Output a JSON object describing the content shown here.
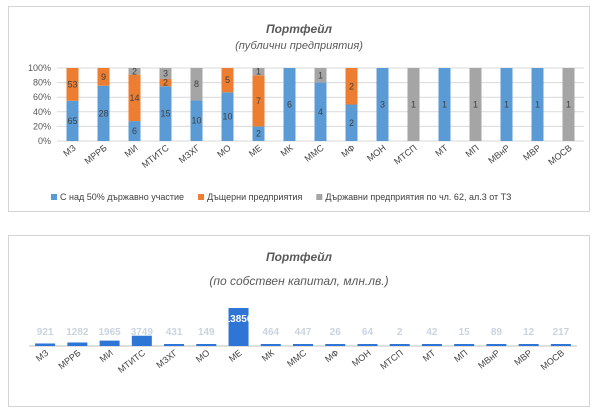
{
  "chart_data": [
    {
      "type": "bar",
      "stacked": "percent",
      "title": "Портфейл",
      "subtitle": "(публични предприятия)",
      "categories": [
        "МЗ",
        "МРРБ",
        "МИ",
        "МТИТС",
        "МЗХГ",
        "МО",
        "МЕ",
        "МК",
        "ММС",
        "МФ",
        "МОН",
        "МТСП",
        "МТ",
        "МП",
        "МВнР",
        "МВР",
        "МОСВ"
      ],
      "series": [
        {
          "name": "С над 50% държавно участие",
          "color": "#5b9bd5",
          "values": [
            65,
            28,
            6,
            15,
            10,
            10,
            2,
            6,
            4,
            2,
            3,
            0,
            1,
            0,
            1,
            1,
            0
          ]
        },
        {
          "name": "Дъщерни предприятия",
          "color": "#ed7d31",
          "values": [
            53,
            9,
            14,
            2,
            0,
            5,
            7,
            0,
            0,
            2,
            0,
            0,
            0,
            0,
            0,
            0,
            0
          ]
        },
        {
          "name": "Държавни предприятия по чл. 62, ал.3 от ТЗ",
          "color": "#a5a5a5",
          "values": [
            0,
            0,
            2,
            3,
            8,
            0,
            1,
            0,
            1,
            0,
            0,
            1,
            0,
            1,
            0,
            0,
            1
          ]
        }
      ],
      "y_ticks": [
        "0%",
        "20%",
        "40%",
        "60%",
        "80%",
        "100%"
      ],
      "legend": "bottom"
    },
    {
      "type": "bar",
      "title": "Портфейл",
      "subtitle": "(по собствен капитал, млн.лв.)",
      "categories": [
        "МЗ",
        "МРРБ",
        "МИ",
        "МТИТС",
        "МЗХГ",
        "МО",
        "МЕ",
        "МК",
        "ММС",
        "МФ",
        "МОН",
        "МТСП",
        "МТ",
        "МП",
        "МВнР",
        "МВР",
        "МОСВ"
      ],
      "values": [
        921,
        1282,
        1965,
        3749,
        431,
        149,
        13856,
        464,
        447,
        26,
        64,
        2,
        42,
        15,
        89,
        12,
        217
      ],
      "color": "#2e75d6"
    }
  ]
}
